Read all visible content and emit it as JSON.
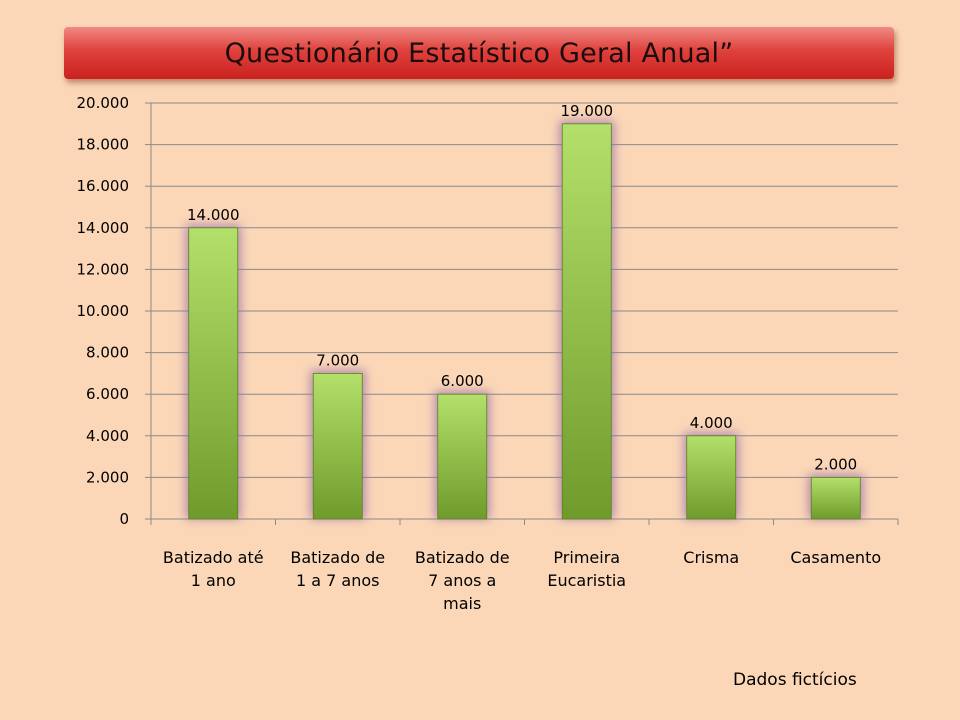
{
  "chart_data": {
    "type": "bar",
    "title": "Questionário Estatístico Geral Anual”",
    "categories": [
      [
        "Batizado até",
        "1 ano"
      ],
      [
        "Batizado de",
        "1 a 7 anos"
      ],
      [
        "Batizado de",
        "7 anos a",
        "mais"
      ],
      [
        "Primeira",
        "Eucaristia"
      ],
      [
        "Crisma"
      ],
      [
        "Casamento"
      ]
    ],
    "values": [
      14000,
      7000,
      6000,
      19000,
      4000,
      2000
    ],
    "data_labels": [
      "14.000",
      "7.000",
      "6.000",
      "19.000",
      "4.000",
      "2.000"
    ],
    "yticks": [
      0,
      2000,
      4000,
      6000,
      8000,
      10000,
      12000,
      14000,
      16000,
      18000,
      20000
    ],
    "ytick_labels": [
      "0",
      "2.000",
      "4.000",
      "6.000",
      "8.000",
      "10.000",
      "12.000",
      "14.000",
      "16.000",
      "18.000",
      "20.000"
    ],
    "ylim": [
      0,
      20000
    ],
    "grid": true,
    "legend": "none",
    "colors": {
      "bar_top": "#b3e06a",
      "bar_bottom": "#6f9b2c",
      "bar_glow": "#9b6fa8",
      "grid": "#8a8a8a",
      "background": "#fbd7b7"
    }
  },
  "note": "Dados fictícios"
}
